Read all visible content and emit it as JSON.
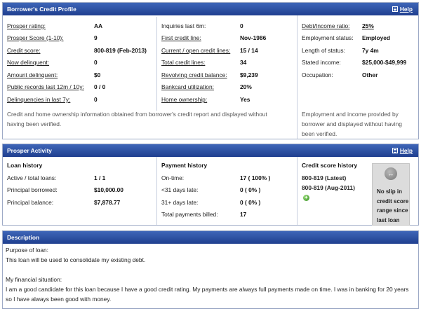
{
  "credit_profile": {
    "title": "Borrower's Credit Profile",
    "help": "Help",
    "col1": [
      {
        "label": "Prosper rating:",
        "value": "AA"
      },
      {
        "label": "Prosper Score (1-10):",
        "value": "9"
      },
      {
        "label": "Credit score:",
        "value": "800-819 (Feb-2013)"
      },
      {
        "label": "Now delinquent:",
        "value": "0"
      },
      {
        "label": "Amount delinquent:",
        "value": "$0"
      },
      {
        "label": "Public records last 12m / 10y:",
        "value": "0 / 0"
      },
      {
        "label": "Delinquencies in last 7y:",
        "value": "0"
      }
    ],
    "col2": [
      {
        "label": "Inquiries last 6m:",
        "value": "0"
      },
      {
        "label": "First credit line:",
        "value": "Nov-1986"
      },
      {
        "label": "Current / open credit lines:",
        "value": "15 / 14"
      },
      {
        "label": "Total credit lines:",
        "value": "34"
      },
      {
        "label": "Revolving credit balance:",
        "value": "$9,239"
      },
      {
        "label": "Bankcard utilization:",
        "value": "20%"
      },
      {
        "label": "Home ownership:",
        "value": "Yes"
      }
    ],
    "col3": [
      {
        "label": "Debt/Income ratio:",
        "value": "25%"
      },
      {
        "label": "Employment status:",
        "value": "Employed"
      },
      {
        "label": "Length of status:",
        "value": "7y 4m"
      },
      {
        "label": "Stated income:",
        "value": "$25,000-$49,999"
      },
      {
        "label": "Occupation:",
        "value": "Other"
      }
    ],
    "note_left": [
      "Credit and home ownership information obtained from borrower's credit report and displayed without",
      "having been verified."
    ],
    "note_right": [
      "Employment and income provided by",
      "borrower and displayed without having",
      "been verified."
    ]
  },
  "activity": {
    "title": "Prosper Activity",
    "help": "Help",
    "loan_history": {
      "title": "Loan history",
      "rows": [
        {
          "label": "Active / total loans:",
          "value": "1 / 1"
        },
        {
          "label": "Principal borrowed:",
          "value": "$10,000.00"
        },
        {
          "label": "Principal balance:",
          "value": "$7,878.77"
        }
      ]
    },
    "payment_history": {
      "title": "Payment history",
      "rows": [
        {
          "label": "On-time:",
          "value": "17 ( 100% )"
        },
        {
          "label": "<31 days late:",
          "value": "0 ( 0% )"
        },
        {
          "label": "31+ days late:",
          "value": "0 ( 0% )"
        },
        {
          "label": "Total payments billed:",
          "value": "17"
        }
      ]
    },
    "credit_score_history": {
      "title": "Credit score history",
      "entries": [
        "800-819 (Latest)",
        "800-819 (Aug-2011)"
      ],
      "badge": "No slip in credit score range since last loan"
    }
  },
  "description": {
    "title": "Description",
    "purpose_label": "Purpose of loan:",
    "purpose_text": "This loan will be used to consolidate my existing debt.",
    "situation_label": "My financial situation:",
    "situation_text": "I am a good candidate for this loan because I have a good credit rating. My payments are always full payments made on time. I was in banking for 20 years so I have always been good with money."
  }
}
